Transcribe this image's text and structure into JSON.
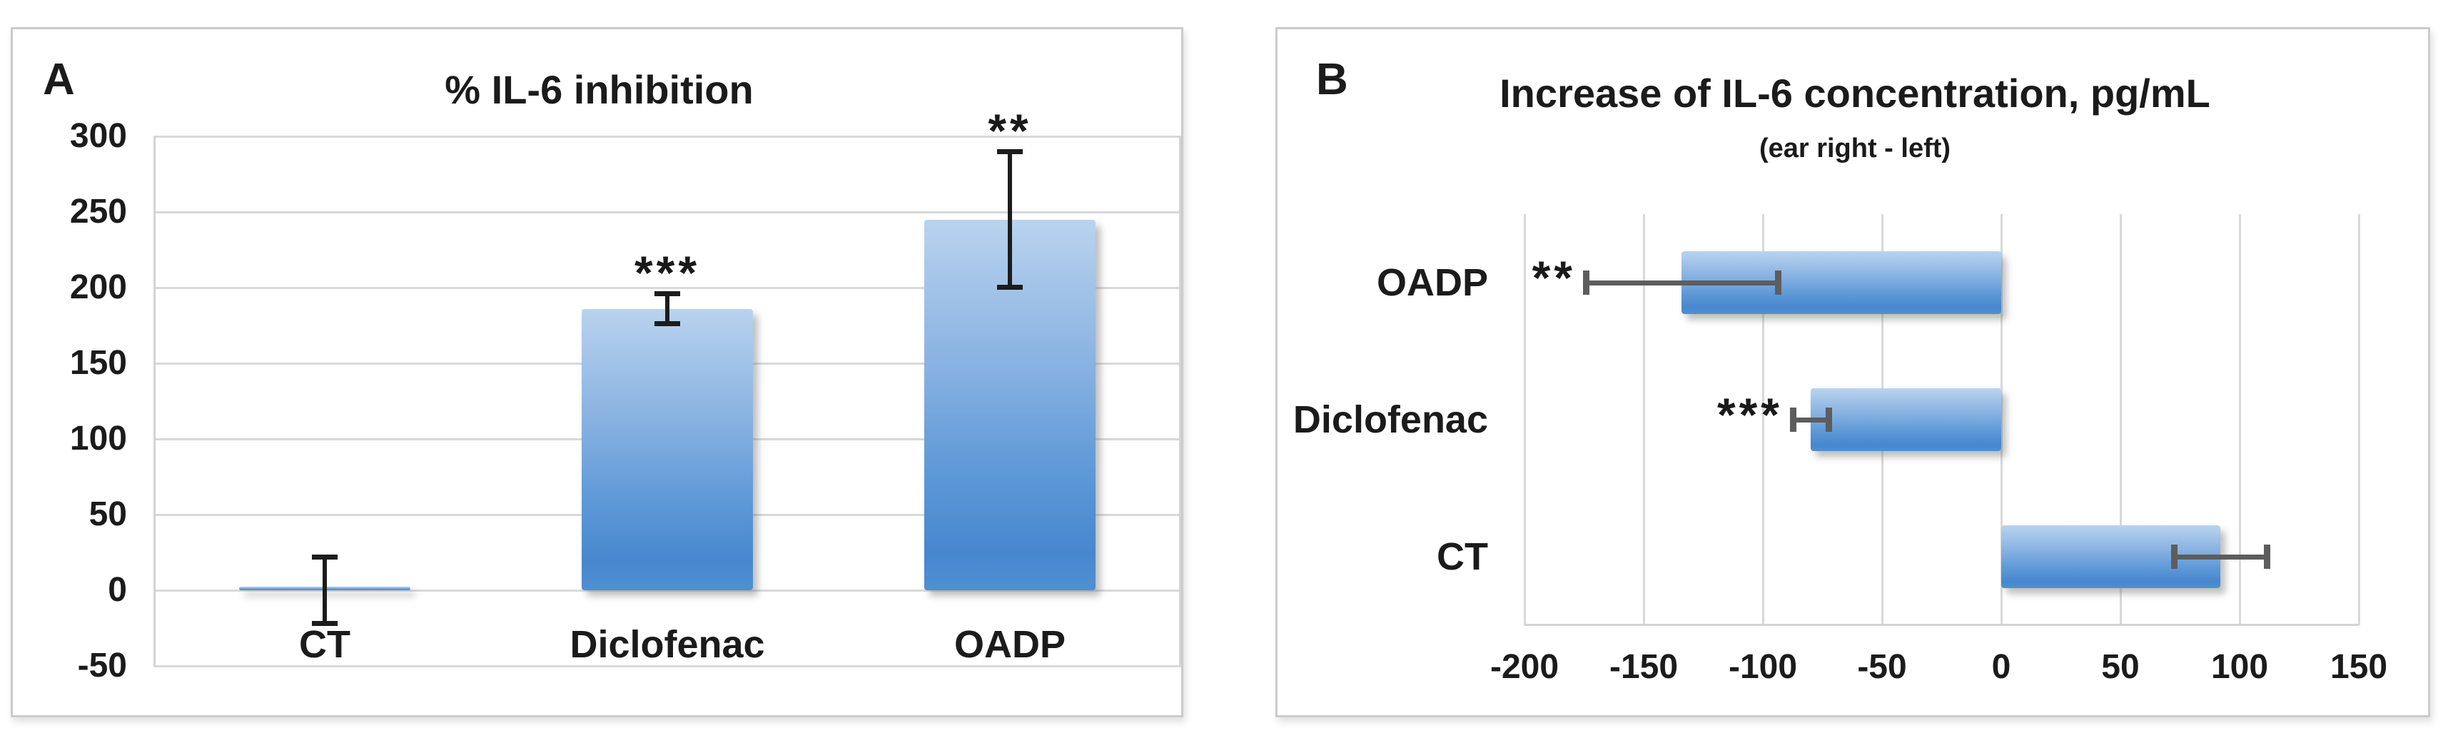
{
  "figure": {
    "panels": [
      {
        "label": "A"
      },
      {
        "label": "B"
      }
    ]
  },
  "chart_data": [
    {
      "type": "bar",
      "panel": "A",
      "orientation": "vertical",
      "title": "% IL-6 inhibition",
      "categories": [
        "CT",
        "Diclofenac",
        "OADP"
      ],
      "values": [
        0,
        186,
        245
      ],
      "errors": [
        22,
        10,
        45
      ],
      "significance": [
        "",
        "***",
        "**"
      ],
      "ylim": [
        -50,
        300
      ],
      "yticks": [
        300,
        250,
        200,
        150,
        100,
        50,
        0,
        -50
      ],
      "xlabel": "",
      "ylabel": "",
      "grid": "horizontal gridlines every 50",
      "legend": "none"
    },
    {
      "type": "bar",
      "panel": "B",
      "orientation": "horizontal",
      "title": "Increase of IL-6 concentration, pg/mL",
      "subtitle": "(ear right - left)",
      "categories": [
        "OADP",
        "Diclofenac",
        "CT"
      ],
      "values": [
        -134,
        -80,
        92
      ],
      "errors": [
        41,
        8,
        20
      ],
      "significance": [
        "**",
        "***",
        ""
      ],
      "xlim": [
        -200,
        150
      ],
      "xticks": [
        -200,
        -150,
        -100,
        -50,
        0,
        50,
        100,
        150
      ],
      "xlabel": "",
      "ylabel": "",
      "grid": "vertical gridlines every 50",
      "legend": "none"
    }
  ],
  "colors": {
    "bar_gradient_top": "#b9d3ee",
    "bar_gradient_bottom": "#4787ce",
    "gridline": "#d9d9d9",
    "panel_border": "#cbcbcb",
    "error_bar_panel_a": "#1c1c1c",
    "error_bar_panel_b": "#5d5d5d",
    "significance_text": "#1a1a1a",
    "text": "#1b1b1b",
    "background": "#ffffff"
  }
}
